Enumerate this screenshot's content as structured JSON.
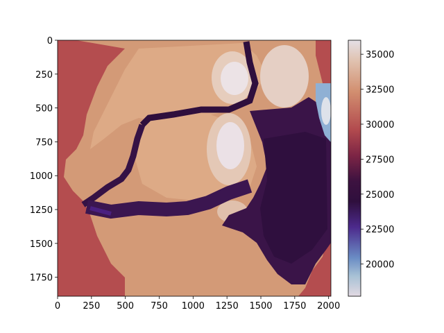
{
  "chart_data": {
    "type": "heatmap",
    "title": "",
    "xlabel": "",
    "ylabel": "",
    "xlim": [
      0,
      2017
    ],
    "ylim": [
      1890,
      0
    ],
    "x_ticks": [
      0,
      250,
      500,
      750,
      1000,
      1250,
      1500,
      1750,
      2000
    ],
    "y_ticks": [
      0,
      250,
      500,
      750,
      1000,
      1250,
      1500,
      1750
    ],
    "colorbar": {
      "range": [
        17700,
        36000
      ],
      "ticks": [
        20000,
        22500,
        25000,
        27500,
        30000,
        32500,
        35000
      ],
      "colormap": "twilight_shifted"
    },
    "grid": false
  }
}
